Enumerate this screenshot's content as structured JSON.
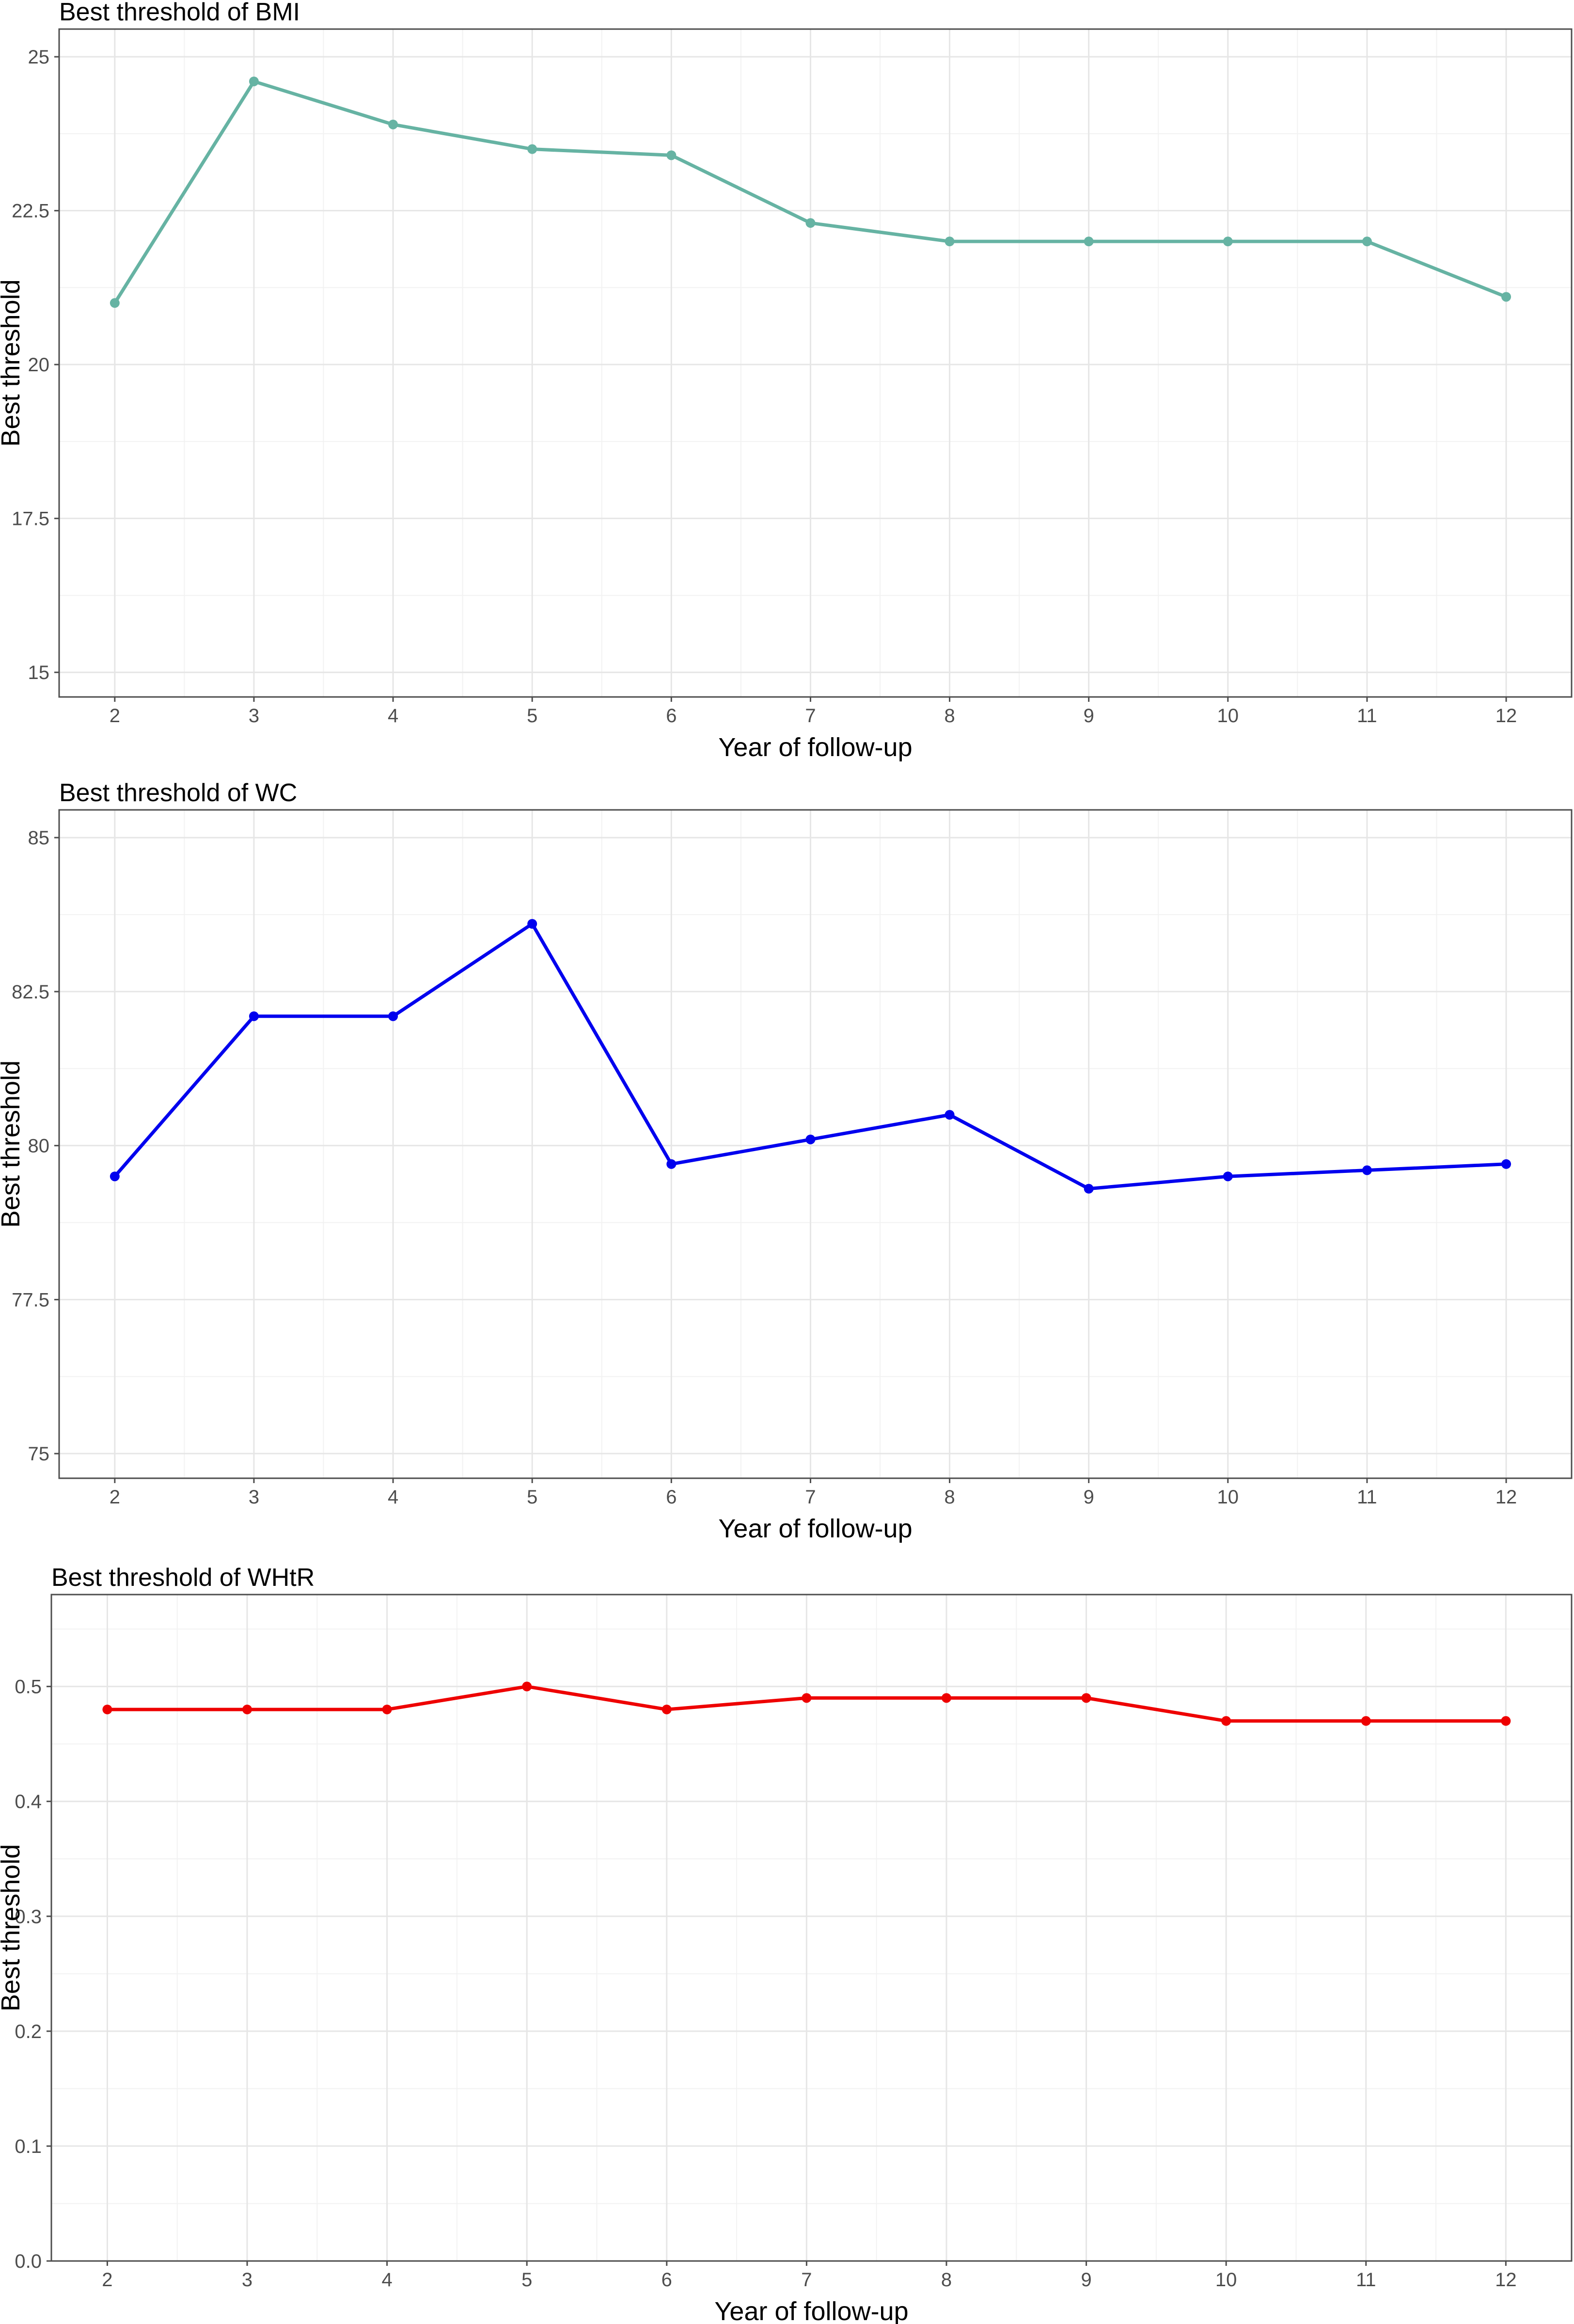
{
  "chart_data": [
    {
      "type": "line",
      "title": "Best threshold of BMI",
      "xlabel": "Year of follow-up",
      "ylabel": "Best threshold",
      "x": [
        2,
        3,
        4,
        5,
        6,
        7,
        8,
        9,
        10,
        11,
        12
      ],
      "series": [
        {
          "values": [
            21.0,
            24.6,
            23.9,
            23.5,
            23.4,
            22.3,
            22.0,
            22.0,
            22.0,
            22.0,
            21.1
          ],
          "color": "#66b3a3"
        }
      ],
      "ylim": [
        15,
        25
      ],
      "yticks": [
        15,
        17.5,
        20,
        22.5,
        25
      ],
      "ytick_labels": [
        "15",
        "17.5",
        "20",
        "22.5",
        "25"
      ],
      "xticks": [
        2,
        3,
        4,
        5,
        6,
        7,
        8,
        9,
        10,
        11,
        12
      ],
      "xtick_labels": [
        "2",
        "3",
        "4",
        "5",
        "6",
        "7",
        "8",
        "9",
        "10",
        "11",
        "12"
      ],
      "grid": true,
      "legend": "none"
    },
    {
      "type": "line",
      "title": "Best threshold of WC",
      "xlabel": "Year of follow-up",
      "ylabel": "Best threshold",
      "x": [
        2,
        3,
        4,
        5,
        6,
        7,
        8,
        9,
        10,
        11,
        12
      ],
      "series": [
        {
          "values": [
            79.5,
            82.1,
            82.1,
            83.6,
            79.7,
            80.1,
            80.5,
            79.3,
            79.5,
            79.6,
            79.7
          ],
          "color": "#0000ee"
        }
      ],
      "ylim": [
        75,
        85
      ],
      "yticks": [
        75,
        77.5,
        80,
        82.5,
        85
      ],
      "ytick_labels": [
        "75",
        "77.5",
        "80",
        "82.5",
        "85"
      ],
      "xticks": [
        2,
        3,
        4,
        5,
        6,
        7,
        8,
        9,
        10,
        11,
        12
      ],
      "xtick_labels": [
        "2",
        "3",
        "4",
        "5",
        "6",
        "7",
        "8",
        "9",
        "10",
        "11",
        "12"
      ],
      "grid": true,
      "legend": "none"
    },
    {
      "type": "line",
      "title": "Best threshold of WHtR",
      "xlabel": "Year of follow-up",
      "ylabel": "Best threshold",
      "x": [
        2,
        3,
        4,
        5,
        6,
        7,
        8,
        9,
        10,
        11,
        12
      ],
      "series": [
        {
          "values": [
            0.48,
            0.48,
            0.48,
            0.5,
            0.48,
            0.49,
            0.49,
            0.49,
            0.47,
            0.47,
            0.47
          ],
          "color": "#ee0000"
        }
      ],
      "ylim": [
        0.0,
        0.5
      ],
      "yticks": [
        0.0,
        0.1,
        0.2,
        0.3,
        0.4,
        0.5
      ],
      "ytick_labels": [
        "0.0",
        "0.1",
        "0.2",
        "0.3",
        "0.4",
        "0.5"
      ],
      "xticks": [
        2,
        3,
        4,
        5,
        6,
        7,
        8,
        9,
        10,
        11,
        12
      ],
      "xtick_labels": [
        "2",
        "3",
        "4",
        "5",
        "6",
        "7",
        "8",
        "9",
        "10",
        "11",
        "12"
      ],
      "grid": true,
      "legend": "none"
    }
  ]
}
